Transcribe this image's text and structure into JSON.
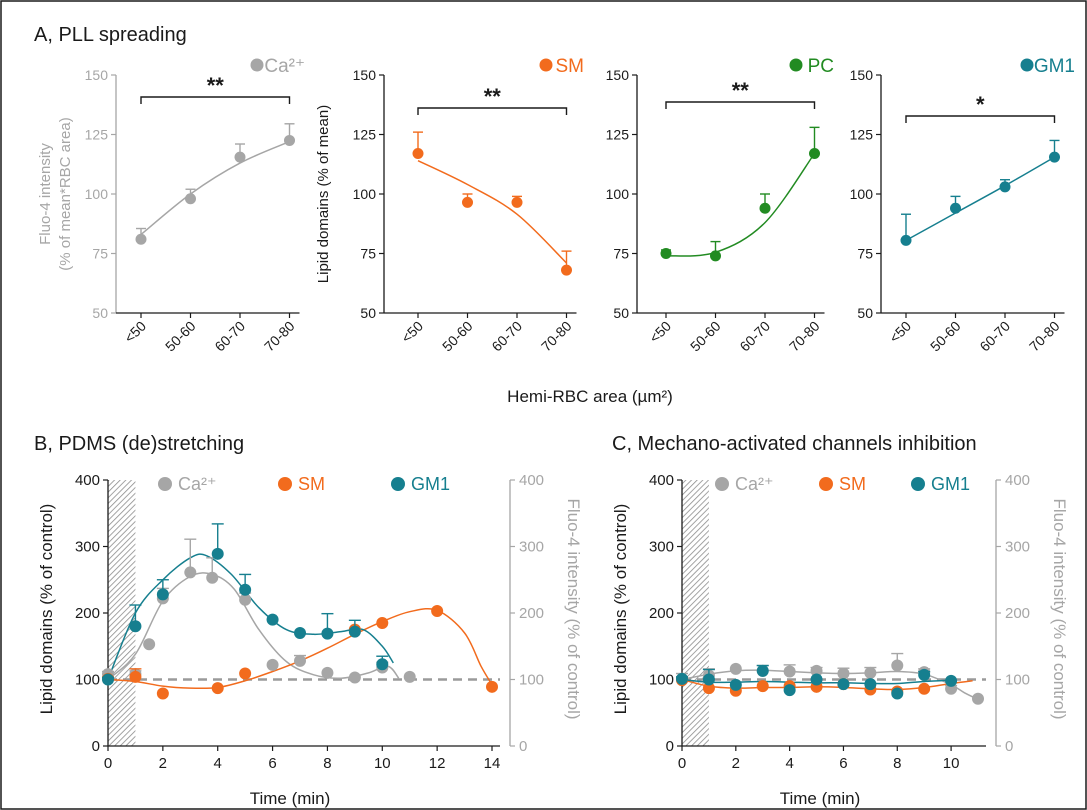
{
  "colors": {
    "ca": "#a6a6a6",
    "sm": "#f26b1d",
    "pc": "#228b22",
    "gm1": "#167f8f",
    "axis": "#1a1a1a",
    "baseline": "#9a9a9a",
    "hatch": "#8c8c8c"
  },
  "figure": {
    "panel_a_title": "A, PLL spreading",
    "panel_b_title": "B, PDMS (de)stretching",
    "panel_c_title": "C, Mechano-activated channels inhibition",
    "shared_xlabel_a": "Hemi-RBC area (µm²)"
  },
  "chart_data": [
    {
      "id": "A1",
      "type": "line",
      "panel": "A",
      "legend": "Ca²⁺",
      "color_key": "ca",
      "ylabel": [
        "Fluo-4 intensity",
        "(% of mean*RBC area)"
      ],
      "categories": [
        "<50",
        "50-60",
        "60-70",
        "70-80"
      ],
      "ylim": [
        50,
        150
      ],
      "yticks": [
        50,
        75,
        100,
        125,
        150
      ],
      "values": [
        81,
        98,
        115.5,
        122.5
      ],
      "errors": [
        4.5,
        4,
        5.5,
        7
      ],
      "fit": [
        83,
        100,
        113,
        122
      ],
      "significance": "**",
      "axis_color_key": "ca"
    },
    {
      "id": "A2",
      "type": "line",
      "panel": "A",
      "legend": "SM",
      "color_key": "sm",
      "ylabel": [
        "Lipid domains (% of mean)"
      ],
      "categories": [
        "<50",
        "50-60",
        "60-70",
        "70-80"
      ],
      "ylim": [
        50,
        150
      ],
      "yticks": [
        50,
        75,
        100,
        125,
        150
      ],
      "values": [
        117,
        96.5,
        96.5,
        68
      ],
      "errors": [
        9,
        3.5,
        2.5,
        8
      ],
      "fit": [
        114,
        104,
        91.5,
        71
      ],
      "significance": "**",
      "axis_color_key": "axis"
    },
    {
      "id": "A3",
      "type": "line",
      "panel": "A",
      "legend": "PC",
      "color_key": "pc",
      "ylabel": [],
      "categories": [
        "<50",
        "50-60",
        "60-70",
        "70-80"
      ],
      "ylim": [
        50,
        150
      ],
      "yticks": [
        50,
        75,
        100,
        125,
        150
      ],
      "values": [
        75,
        74,
        94,
        117
      ],
      "errors": [
        1.5,
        6,
        6,
        11
      ],
      "fit": [
        74,
        75.5,
        88,
        117
      ],
      "significance": "**",
      "axis_color_key": "axis"
    },
    {
      "id": "A4",
      "type": "line",
      "panel": "A",
      "legend": "GM1",
      "color_key": "gm1",
      "ylabel": [],
      "categories": [
        "<50",
        "50-60",
        "60-70",
        "70-80"
      ],
      "ylim": [
        50,
        150
      ],
      "yticks": [
        50,
        75,
        100,
        125,
        150
      ],
      "values": [
        80.5,
        94,
        103,
        115.5
      ],
      "errors": [
        11,
        5,
        3,
        7
      ],
      "fit": [
        80.5,
        92,
        103.5,
        115.5
      ],
      "significance": "*",
      "axis_color_key": "axis"
    },
    {
      "id": "B",
      "type": "line",
      "panel": "B",
      "xlabel": "Time (min)",
      "ylabel": "Lipid domains (% of control)",
      "y2label": "Fluo-4 intensity (% of control)",
      "xlim": [
        0,
        14
      ],
      "xticks": [
        0,
        2,
        4,
        6,
        8,
        10,
        12,
        14
      ],
      "ylim": [
        0,
        400
      ],
      "yticks": [
        0,
        100,
        200,
        300,
        400
      ],
      "baseline": 100,
      "stimulus_window": [
        0,
        1
      ],
      "series": [
        {
          "name": "Ca²⁺",
          "color_key": "ca",
          "x": [
            0,
            1,
            1.5,
            2,
            3,
            3.8,
            5,
            6,
            7,
            8,
            9,
            10,
            11
          ],
          "values": [
            108,
            108,
            153,
            222,
            261,
            253,
            220,
            122,
            128,
            110,
            103,
            118,
            104
          ],
          "errors": [
            4,
            5,
            0,
            15,
            50,
            30,
            10,
            0,
            8,
            0,
            0,
            8,
            0
          ],
          "fit": [
            [
              0,
              100
            ],
            [
              1,
              138
            ],
            [
              2,
              218
            ],
            [
              3,
              255
            ],
            [
              3.8,
              258
            ],
            [
              4.6,
              236
            ],
            [
              5.5,
              175
            ],
            [
              6.5,
              127
            ],
            [
              7.5,
              107
            ],
            [
              8.5,
              102
            ],
            [
              9.5,
              110
            ],
            [
              10.2,
              120
            ],
            [
              10.6,
              102
            ]
          ]
        },
        {
          "name": "SM",
          "color_key": "sm",
          "x": [
            0,
            1,
            2,
            4,
            5,
            9,
            10,
            12,
            14
          ],
          "values": [
            101,
            104,
            79,
            87,
            109,
            175,
            185,
            203,
            89
          ],
          "errors": [
            3,
            12,
            0,
            0,
            0,
            0,
            0,
            0,
            0
          ],
          "fit": [
            [
              0,
              100
            ],
            [
              1,
              97
            ],
            [
              2,
              90
            ],
            [
              3,
              87
            ],
            [
              4,
              88
            ],
            [
              5,
              98
            ],
            [
              6,
              112
            ],
            [
              7,
              128
            ],
            [
              8,
              147
            ],
            [
              9,
              168
            ],
            [
              10,
              187
            ],
            [
              11,
              202
            ],
            [
              12,
              204
            ],
            [
              13,
              170
            ],
            [
              13.6,
              120
            ],
            [
              14,
              92
            ]
          ]
        },
        {
          "name": "GM1",
          "color_key": "gm1",
          "x": [
            0,
            1,
            2,
            4,
            5,
            6,
            7,
            8,
            9,
            10
          ],
          "values": [
            100,
            180,
            228,
            289,
            235,
            190,
            170,
            169,
            172,
            123
          ],
          "errors": [
            3,
            32,
            22,
            45,
            23,
            0,
            0,
            30,
            17,
            12
          ],
          "fit": [
            [
              0,
              100
            ],
            [
              1,
              200
            ],
            [
              2,
              250
            ],
            [
              3,
              283
            ],
            [
              3.6,
              286
            ],
            [
              4.5,
              258
            ],
            [
              5.5,
              208
            ],
            [
              6.5,
              175
            ],
            [
              7.5,
              168
            ],
            [
              8.5,
              172
            ],
            [
              9.3,
              175
            ],
            [
              10,
              150
            ],
            [
              10.4,
              125
            ]
          ]
        }
      ]
    },
    {
      "id": "C",
      "type": "line",
      "panel": "C",
      "xlabel": "Time (min)",
      "ylabel": "Lipid domains (% of control)",
      "y2label": "Fluo-4 intensity (% of control)",
      "xlim": [
        0,
        11
      ],
      "xticks": [
        0,
        2,
        4,
        6,
        8,
        10
      ],
      "ylim": [
        0,
        400
      ],
      "yticks": [
        0,
        100,
        200,
        300,
        400
      ],
      "baseline": 100,
      "stimulus_window": [
        0,
        1
      ],
      "series": [
        {
          "name": "Ca²⁺",
          "color_key": "ca",
          "x": [
            0,
            1,
            2,
            3,
            4,
            5,
            6,
            7,
            8,
            9,
            10,
            11
          ],
          "values": [
            101,
            106,
            116,
            113,
            112,
            113,
            109,
            110,
            121,
            111,
            86,
            71
          ],
          "errors": [
            8,
            10,
            0,
            8,
            10,
            5,
            8,
            8,
            18,
            5,
            5,
            0
          ],
          "fit": [
            [
              0,
              100
            ],
            [
              1,
              108
            ],
            [
              2,
              113
            ],
            [
              3,
              114
            ],
            [
              4,
              112
            ],
            [
              5,
              110
            ],
            [
              6,
              109
            ],
            [
              7,
              110
            ],
            [
              8,
              112
            ],
            [
              9,
              108
            ],
            [
              10,
              92
            ],
            [
              10.5,
              80
            ],
            [
              11,
              70
            ]
          ]
        },
        {
          "name": "SM",
          "color_key": "sm",
          "x": [
            0,
            1,
            2,
            3,
            4,
            5,
            6,
            7,
            8,
            9
          ],
          "values": [
            99,
            87,
            83,
            90,
            90,
            89,
            93,
            85,
            82,
            86
          ],
          "errors": [
            3,
            0,
            0,
            0,
            0,
            0,
            0,
            0,
            0,
            0
          ],
          "fit": [
            [
              0,
              100
            ],
            [
              1,
              90
            ],
            [
              2,
              87
            ],
            [
              3,
              88
            ],
            [
              4,
              88
            ],
            [
              5,
              89
            ],
            [
              6,
              88
            ],
            [
              7,
              86
            ],
            [
              8,
              85
            ],
            [
              9,
              88
            ],
            [
              10,
              94
            ],
            [
              10.8,
              98
            ]
          ]
        },
        {
          "name": "GM1",
          "color_key": "gm1",
          "x": [
            0,
            1,
            2,
            3,
            4,
            5,
            6,
            7,
            8,
            9,
            10
          ],
          "values": [
            101,
            100,
            92,
            113,
            84,
            100,
            93,
            93,
            79,
            107,
            98
          ],
          "errors": [
            3,
            15,
            0,
            8,
            0,
            0,
            0,
            0,
            0,
            5,
            0
          ],
          "fit": [
            [
              0,
              100
            ],
            [
              1,
              96
            ],
            [
              2,
              96
            ],
            [
              3,
              97
            ],
            [
              4,
              96
            ],
            [
              5,
              95
            ],
            [
              6,
              95
            ],
            [
              7,
              94
            ],
            [
              8,
              94
            ],
            [
              9,
              97
            ],
            [
              10,
              99
            ]
          ]
        }
      ]
    }
  ]
}
